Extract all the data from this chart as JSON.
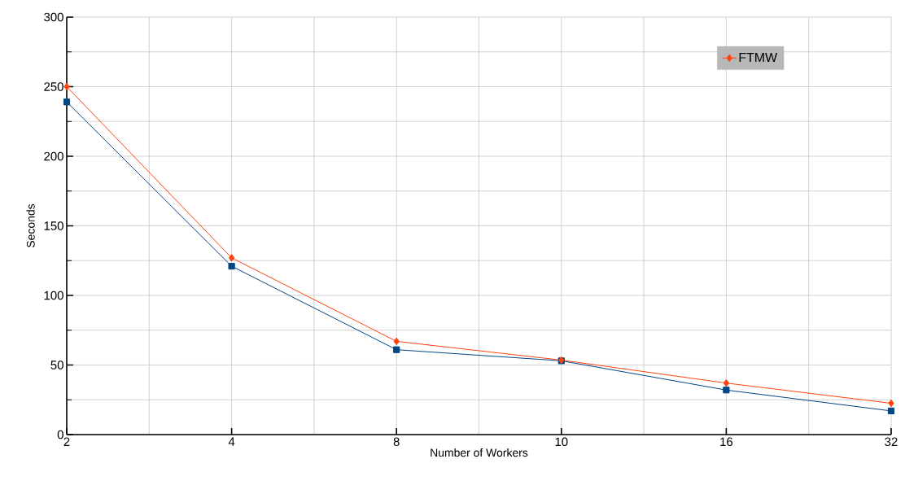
{
  "chart_data": {
    "type": "line",
    "xlabel": "Number of Workers",
    "ylabel": "Seconds",
    "categories": [
      "2",
      "4",
      "8",
      "10",
      "16",
      "32"
    ],
    "series": [
      {
        "color": "#004586",
        "marker": "square",
        "values": [
          239,
          121,
          61,
          53,
          32,
          17
        ]
      },
      {
        "name": "FTMW",
        "color": "#ff420e",
        "marker": "diamond",
        "values": [
          250,
          127,
          67,
          53.5,
          37,
          22.5
        ]
      }
    ],
    "ylim": [
      0,
      300
    ],
    "yticks": [
      0,
      50,
      100,
      150,
      200,
      250,
      300
    ],
    "grid": true,
    "legend": "top right"
  }
}
